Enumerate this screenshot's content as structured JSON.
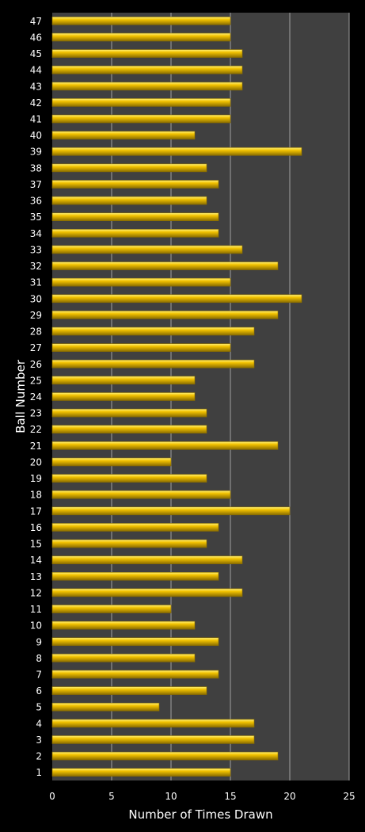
{
  "chart_data": {
    "type": "bar",
    "orientation": "horizontal",
    "title": "",
    "xlabel": "Number of Times Drawn",
    "ylabel": "Ball Number",
    "xlim": [
      0,
      25
    ],
    "xticks": [
      0,
      5,
      10,
      15,
      20,
      25
    ],
    "grid": true,
    "legend": "none",
    "categories": [
      "1",
      "2",
      "3",
      "4",
      "5",
      "6",
      "7",
      "8",
      "9",
      "10",
      "11",
      "12",
      "13",
      "14",
      "15",
      "16",
      "17",
      "18",
      "19",
      "20",
      "21",
      "22",
      "23",
      "24",
      "25",
      "26",
      "27",
      "28",
      "29",
      "30",
      "31",
      "32",
      "33",
      "34",
      "35",
      "36",
      "37",
      "38",
      "39",
      "40",
      "41",
      "42",
      "43",
      "44",
      "45",
      "46",
      "47"
    ],
    "values": [
      15,
      19,
      17,
      17,
      9,
      13,
      14,
      12,
      14,
      12,
      10,
      16,
      14,
      16,
      13,
      14,
      20,
      15,
      13,
      10,
      19,
      13,
      13,
      12,
      12,
      17,
      15,
      17,
      19,
      21,
      15,
      19,
      16,
      14,
      14,
      13,
      14,
      13,
      21,
      12,
      15,
      15,
      16,
      16,
      16,
      15,
      15
    ],
    "colors": {
      "background": "#000000",
      "plot_area": "#404040",
      "bar_fill": "#f2c200",
      "bar_highlight": "#fff27a",
      "bar_edge": "#8a6d00",
      "grid": "#a0a0a0"
    }
  }
}
